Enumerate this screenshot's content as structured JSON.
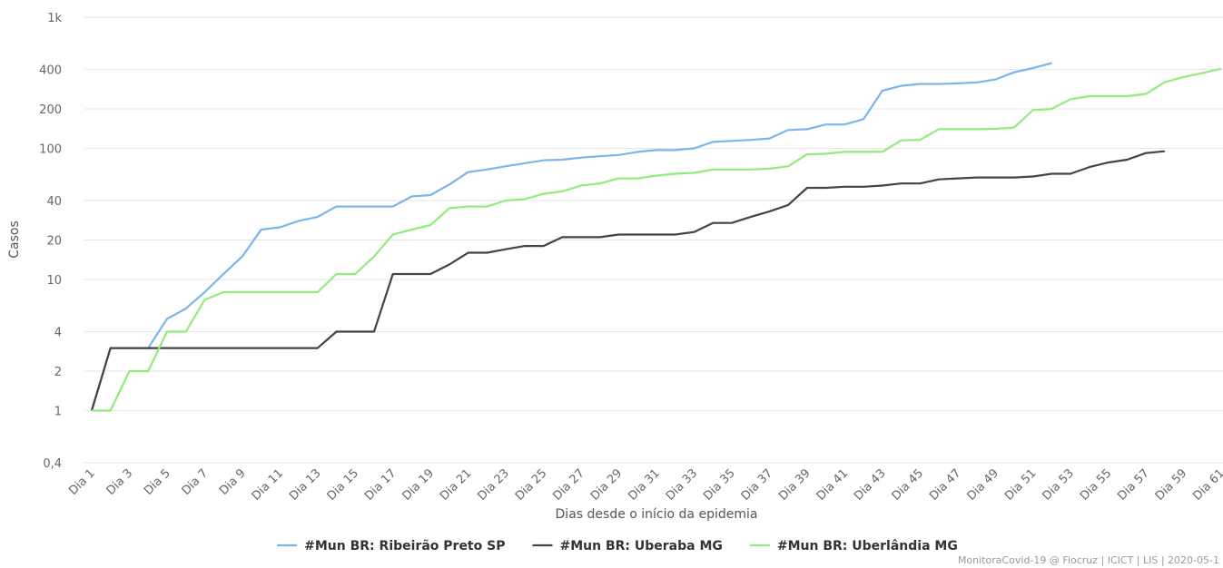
{
  "chart_data": {
    "type": "line",
    "y_label": "Casos",
    "x_label": "Dias desde o início da epidemia",
    "credits": "MonitoraCovid-19 @ Fiocruz | ICICT | LIS | 2020-05-1",
    "yscale": "log",
    "grid": true,
    "legend": "bottom",
    "ylim": [
      0.4,
      1000
    ],
    "yticks": [
      {
        "value": 0.4,
        "label": "0,4"
      },
      1,
      2,
      4,
      10,
      20,
      40,
      100,
      200,
      400,
      {
        "value": 1000,
        "label": "1k"
      }
    ],
    "categories": [
      "Dia 1",
      null,
      "Dia 3",
      null,
      "Dia 5",
      null,
      "Dia 7",
      null,
      "Dia 9",
      null,
      "Dia 11",
      null,
      "Dia 13",
      null,
      "Dia 15",
      null,
      "Dia 17",
      null,
      "Dia 19",
      null,
      "Dia 21",
      null,
      "Dia 23",
      null,
      "Dia 25",
      null,
      "Dia 27",
      null,
      "Dia 29",
      null,
      "Dia 31",
      null,
      "Dia 33",
      null,
      "Dia 35",
      null,
      "Dia 37",
      null,
      "Dia 39",
      null,
      "Dia 41",
      null,
      "Dia 43",
      null,
      "Dia 45",
      null,
      "Dia 47",
      null,
      "Dia 49",
      null,
      "Dia 51",
      null,
      "Dia 53",
      null,
      "Dia 55",
      null,
      "Dia 57",
      null,
      "Dia 59",
      null,
      "Dia 61"
    ],
    "series": [
      {
        "name": "#Mun BR: Ribeirão Preto SP",
        "color": "#7cb5ec",
        "values": [
          1,
          3,
          3,
          3,
          5,
          6,
          8,
          11,
          15,
          24,
          25,
          28,
          30,
          36,
          36,
          36,
          36,
          43,
          44,
          53,
          66,
          69,
          73,
          77,
          81,
          82,
          85,
          87,
          89,
          94,
          97,
          97,
          100,
          112,
          114,
          116,
          119,
          138,
          140,
          152,
          152,
          167,
          275,
          300,
          310,
          310,
          313,
          318,
          335,
          380,
          410,
          447,
          null,
          null,
          null,
          null,
          null,
          null,
          null,
          null,
          null
        ]
      },
      {
        "name": "#Mun BR: Uberaba MG",
        "color": "#434348",
        "values": [
          1,
          3,
          3,
          3,
          3,
          3,
          3,
          3,
          3,
          3,
          3,
          3,
          3,
          4,
          4,
          4,
          11,
          11,
          11,
          13,
          16,
          16,
          17,
          18,
          18,
          21,
          21,
          21,
          22,
          22,
          22,
          22,
          23,
          27,
          27,
          30,
          33,
          37,
          50,
          50,
          51,
          51,
          52,
          54,
          54,
          58,
          59,
          60,
          60,
          60,
          61,
          64,
          64,
          72,
          78,
          82,
          92,
          95,
          null,
          null,
          null
        ]
      },
      {
        "name": "#Mun BR: Uberlândia MG",
        "color": "#90ed7d",
        "values": [
          1,
          1,
          2,
          2,
          4,
          4,
          7,
          8,
          8,
          8,
          8,
          8,
          8,
          11,
          11,
          15,
          22,
          24,
          26,
          35,
          36,
          36,
          40,
          41,
          45,
          47,
          52,
          54,
          59,
          59,
          62,
          64,
          65,
          69,
          69,
          69,
          70,
          73,
          90,
          91,
          94,
          94,
          94,
          115,
          116,
          140,
          140,
          140,
          141,
          144,
          196,
          200,
          237,
          250,
          250,
          250,
          260,
          320,
          350,
          375,
          405
        ]
      }
    ]
  }
}
